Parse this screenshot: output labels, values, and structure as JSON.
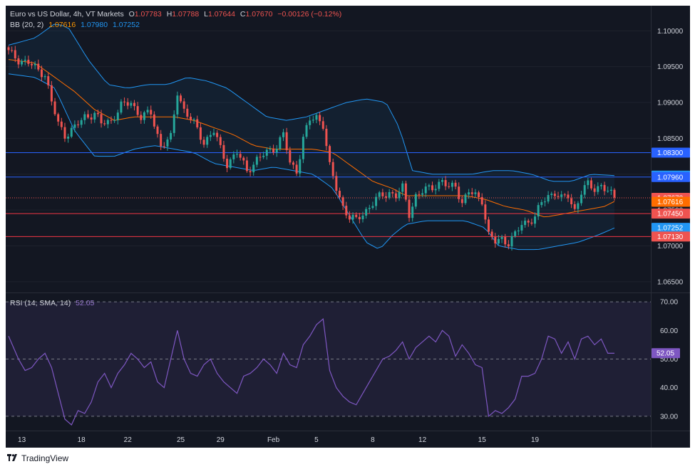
{
  "header": {
    "symbol": "Euro vs US Dollar, 4h, VT Markets",
    "o_label": "O",
    "o_value": "1.07783",
    "h_label": "H",
    "h_value": "1.07788",
    "l_label": "L",
    "l_value": "1.07644",
    "c_label": "C",
    "c_value": "1.07670",
    "change": "−0.00126 (−0.12%)"
  },
  "bb_legend": {
    "label": "BB (20, 2)",
    "basis": "1.07616",
    "upper": "1.07980",
    "lower": "1.07252"
  },
  "rsi_legend": {
    "label": "RSI (14, SMA, 14)",
    "value": "52.05"
  },
  "branding": {
    "name": "TradingView"
  },
  "colors": {
    "background": "#131722",
    "up": "#26a69a",
    "down": "#ef5350",
    "bb_band": "#2962ff",
    "bb_basis": "#ff6d00",
    "rsi": "#7e57c2",
    "text": "#d1d4dc"
  },
  "chart_data": [
    {
      "type": "candlestick",
      "ylim": [
        1.0635,
        1.1035
      ],
      "yticks": [
        "1.10000",
        "1.09500",
        "1.09000",
        "1.08500",
        "1.08000",
        "1.07500",
        "1.07000",
        "1.06500"
      ],
      "xticks": [
        "13",
        "18",
        "22",
        "25",
        "29",
        "Feb",
        "5",
        "8",
        "12",
        "15",
        "19"
      ],
      "price_labels": [
        {
          "value": "1.08300",
          "color": "#2962ff"
        },
        {
          "value": "1.07980",
          "color": "#2196f3"
        },
        {
          "value": "1.07960",
          "color": "#2962ff"
        },
        {
          "value": "1.07670",
          "color": "#ef5350"
        },
        {
          "value": "1.07616",
          "color": "#ff6d00"
        },
        {
          "value": "1.07450",
          "color": "#ef5350"
        },
        {
          "value": "1.07252",
          "color": "#2196f3"
        },
        {
          "value": "1.07130",
          "color": "#ef5350"
        }
      ],
      "horizontal_lines": [
        {
          "value": 1.083,
          "color": "#2962ff"
        },
        {
          "value": 1.0796,
          "color": "#2962ff"
        },
        {
          "value": 1.0745,
          "color": "#f23645"
        },
        {
          "value": 1.0713,
          "color": "#f23645"
        }
      ],
      "close_path": [
        [
          0,
          1.097
        ],
        [
          3,
          1.096
        ],
        [
          6,
          1.0955
        ],
        [
          9,
          1.0945
        ],
        [
          11,
          1.094
        ],
        [
          13,
          1.09
        ],
        [
          15,
          1.087
        ],
        [
          17,
          1.0855
        ],
        [
          20,
          1.0865
        ],
        [
          23,
          1.088
        ],
        [
          26,
          1.0885
        ],
        [
          28,
          1.087
        ],
        [
          31,
          1.0875
        ],
        [
          34,
          1.0895
        ],
        [
          37,
          1.09
        ],
        [
          40,
          1.088
        ],
        [
          43,
          1.0885
        ],
        [
          46,
          1.084
        ],
        [
          49,
          1.085
        ],
        [
          51,
          1.0915
        ],
        [
          53,
          1.089
        ],
        [
          56,
          1.087
        ],
        [
          59,
          1.0845
        ],
        [
          62,
          1.086
        ],
        [
          64,
          1.0835
        ],
        [
          66,
          1.0815
        ],
        [
          69,
          1.083
        ],
        [
          72,
          1.0805
        ],
        [
          75,
          1.082
        ],
        [
          78,
          1.083
        ],
        [
          81,
          1.084
        ],
        [
          83,
          1.0855
        ],
        [
          85,
          1.0815
        ],
        [
          87,
          1.0805
        ],
        [
          89,
          1.085
        ],
        [
          91,
          1.0875
        ],
        [
          93,
          1.088
        ],
        [
          95,
          1.087
        ],
        [
          97,
          1.081
        ],
        [
          99,
          1.078
        ],
        [
          101,
          1.0755
        ],
        [
          103,
          1.074
        ],
        [
          105,
          1.0735
        ],
        [
          107,
          1.0745
        ],
        [
          109,
          1.0755
        ],
        [
          111,
          1.0765
        ],
        [
          113,
          1.077
        ],
        [
          115,
          1.0775
        ],
        [
          117,
          1.077
        ],
        [
          119,
          1.078
        ],
        [
          121,
          1.0745
        ],
        [
          123,
          1.077
        ],
        [
          125,
          1.0775
        ],
        [
          127,
          1.078
        ],
        [
          129,
          1.0785
        ],
        [
          131,
          1.079
        ],
        [
          133,
          1.078
        ],
        [
          135,
          1.0785
        ],
        [
          137,
          1.076
        ],
        [
          139,
          1.0775
        ],
        [
          141,
          1.077
        ],
        [
          143,
          1.0765
        ],
        [
          145,
          1.0715
        ],
        [
          147,
          1.0705
        ],
        [
          149,
          1.071
        ],
        [
          151,
          1.0705
        ],
        [
          153,
          1.0715
        ],
        [
          155,
          1.073
        ],
        [
          157,
          1.0735
        ],
        [
          159,
          1.074
        ],
        [
          161,
          1.076
        ],
        [
          163,
          1.077
        ],
        [
          165,
          1.0775
        ],
        [
          167,
          1.0765
        ],
        [
          169,
          1.077
        ],
        [
          171,
          1.075
        ],
        [
          173,
          1.0775
        ],
        [
          175,
          1.0785
        ],
        [
          177,
          1.078
        ],
        [
          179,
          1.0785
        ],
        [
          181,
          1.0775
        ],
        [
          183,
          1.0767
        ]
      ],
      "bb_upper": [
        [
          0,
          1.098
        ],
        [
          8,
          1.099
        ],
        [
          14,
          1.101
        ],
        [
          18,
          1.1005
        ],
        [
          24,
          1.096
        ],
        [
          30,
          1.0925
        ],
        [
          36,
          1.092
        ],
        [
          42,
          1.0925
        ],
        [
          48,
          1.0925
        ],
        [
          54,
          1.0935
        ],
        [
          60,
          1.093
        ],
        [
          66,
          1.092
        ],
        [
          72,
          1.09
        ],
        [
          78,
          1.088
        ],
        [
          84,
          1.0875
        ],
        [
          90,
          1.088
        ],
        [
          96,
          1.089
        ],
        [
          102,
          1.09
        ],
        [
          108,
          1.0905
        ],
        [
          114,
          1.09
        ],
        [
          118,
          1.0865
        ],
        [
          122,
          1.0805
        ],
        [
          128,
          1.08
        ],
        [
          134,
          1.08
        ],
        [
          140,
          1.08
        ],
        [
          146,
          1.0805
        ],
        [
          152,
          1.0805
        ],
        [
          158,
          1.08
        ],
        [
          164,
          1.079
        ],
        [
          170,
          1.079
        ],
        [
          176,
          1.08
        ],
        [
          183,
          1.0798
        ]
      ],
      "bb_lower": [
        [
          0,
          1.094
        ],
        [
          8,
          1.0935
        ],
        [
          14,
          1.092
        ],
        [
          20,
          1.086
        ],
        [
          26,
          1.0825
        ],
        [
          32,
          1.0825
        ],
        [
          38,
          1.0835
        ],
        [
          44,
          1.084
        ],
        [
          50,
          1.0835
        ],
        [
          56,
          1.083
        ],
        [
          62,
          1.0815
        ],
        [
          68,
          1.081
        ],
        [
          74,
          1.0805
        ],
        [
          80,
          1.081
        ],
        [
          86,
          1.0805
        ],
        [
          92,
          1.08
        ],
        [
          98,
          1.078
        ],
        [
          104,
          1.0735
        ],
        [
          108,
          1.0705
        ],
        [
          112,
          1.0695
        ],
        [
          116,
          1.0715
        ],
        [
          120,
          1.073
        ],
        [
          126,
          1.0735
        ],
        [
          132,
          1.0735
        ],
        [
          138,
          1.0735
        ],
        [
          144,
          1.0725
        ],
        [
          148,
          1.07
        ],
        [
          154,
          1.0695
        ],
        [
          160,
          1.0695
        ],
        [
          166,
          1.07
        ],
        [
          172,
          1.0705
        ],
        [
          178,
          1.0715
        ],
        [
          183,
          1.0725
        ]
      ],
      "bb_basis": [
        [
          0,
          1.096
        ],
        [
          8,
          1.0955
        ],
        [
          14,
          1.0935
        ],
        [
          20,
          1.0915
        ],
        [
          26,
          1.089
        ],
        [
          32,
          1.0875
        ],
        [
          38,
          1.088
        ],
        [
          44,
          1.088
        ],
        [
          50,
          1.088
        ],
        [
          56,
          1.0875
        ],
        [
          62,
          1.0865
        ],
        [
          68,
          1.0855
        ],
        [
          74,
          1.084
        ],
        [
          80,
          1.0835
        ],
        [
          86,
          1.0835
        ],
        [
          92,
          1.0835
        ],
        [
          98,
          1.083
        ],
        [
          104,
          1.081
        ],
        [
          110,
          1.079
        ],
        [
          116,
          1.078
        ],
        [
          120,
          1.077
        ],
        [
          126,
          1.077
        ],
        [
          132,
          1.077
        ],
        [
          138,
          1.077
        ],
        [
          144,
          1.0765
        ],
        [
          150,
          1.0755
        ],
        [
          156,
          1.075
        ],
        [
          162,
          1.074
        ],
        [
          168,
          1.0745
        ],
        [
          174,
          1.075
        ],
        [
          180,
          1.0755
        ],
        [
          183,
          1.0762
        ]
      ]
    },
    {
      "type": "line",
      "name": "RSI (14, SMA, 14)",
      "ylim": [
        25,
        73
      ],
      "yticks": [
        "70.00",
        "60.00",
        "50.00",
        "40.00",
        "30.00"
      ],
      "bands": [
        70,
        30
      ],
      "midline": 50,
      "last_value": "52.05",
      "values": [
        [
          0,
          58
        ],
        [
          3,
          50
        ],
        [
          5,
          46
        ],
        [
          7,
          47
        ],
        [
          9,
          50
        ],
        [
          11,
          52
        ],
        [
          13,
          47
        ],
        [
          15,
          38
        ],
        [
          17,
          29
        ],
        [
          19,
          27
        ],
        [
          21,
          32
        ],
        [
          23,
          31
        ],
        [
          25,
          35
        ],
        [
          27,
          42
        ],
        [
          29,
          45
        ],
        [
          31,
          40
        ],
        [
          33,
          45
        ],
        [
          35,
          48
        ],
        [
          37,
          52
        ],
        [
          39,
          50
        ],
        [
          41,
          47
        ],
        [
          43,
          49
        ],
        [
          45,
          42
        ],
        [
          47,
          40
        ],
        [
          49,
          50
        ],
        [
          51,
          60
        ],
        [
          53,
          50
        ],
        [
          55,
          45
        ],
        [
          57,
          44
        ],
        [
          59,
          48
        ],
        [
          61,
          50
        ],
        [
          63,
          45
        ],
        [
          65,
          42
        ],
        [
          67,
          40
        ],
        [
          69,
          38
        ],
        [
          71,
          44
        ],
        [
          73,
          45
        ],
        [
          75,
          47
        ],
        [
          77,
          50
        ],
        [
          79,
          48
        ],
        [
          81,
          45
        ],
        [
          83,
          52
        ],
        [
          85,
          48
        ],
        [
          87,
          47
        ],
        [
          89,
          55
        ],
        [
          91,
          58
        ],
        [
          93,
          62
        ],
        [
          95,
          64
        ],
        [
          97,
          46
        ],
        [
          99,
          40
        ],
        [
          101,
          37
        ],
        [
          103,
          35
        ],
        [
          105,
          34
        ],
        [
          107,
          38
        ],
        [
          109,
          42
        ],
        [
          111,
          46
        ],
        [
          113,
          50
        ],
        [
          115,
          51
        ],
        [
          117,
          53
        ],
        [
          119,
          56
        ],
        [
          121,
          50
        ],
        [
          123,
          54
        ],
        [
          125,
          56
        ],
        [
          127,
          58
        ],
        [
          129,
          56
        ],
        [
          131,
          60
        ],
        [
          133,
          58
        ],
        [
          135,
          51
        ],
        [
          137,
          55
        ],
        [
          139,
          52
        ],
        [
          141,
          48
        ],
        [
          143,
          47
        ],
        [
          145,
          30
        ],
        [
          147,
          32
        ],
        [
          149,
          31
        ],
        [
          151,
          33
        ],
        [
          153,
          36
        ],
        [
          155,
          44
        ],
        [
          157,
          44
        ],
        [
          159,
          45
        ],
        [
          161,
          50
        ],
        [
          163,
          58
        ],
        [
          165,
          57
        ],
        [
          167,
          52
        ],
        [
          169,
          56
        ],
        [
          171,
          50
        ],
        [
          173,
          57
        ],
        [
          175,
          58
        ],
        [
          177,
          55
        ],
        [
          179,
          57
        ],
        [
          181,
          52
        ],
        [
          183,
          52
        ]
      ]
    }
  ]
}
